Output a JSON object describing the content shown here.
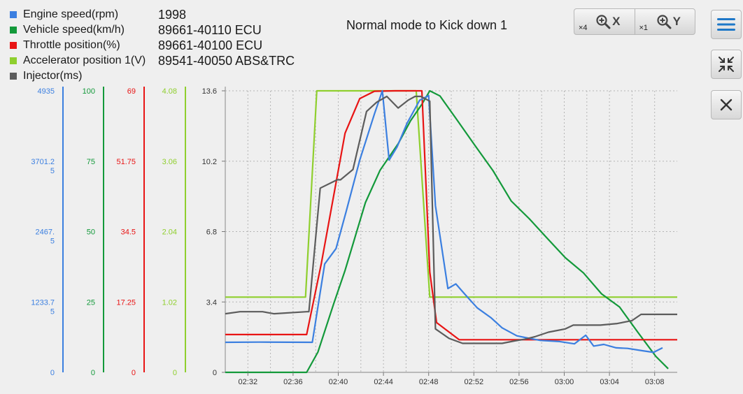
{
  "legend": [
    {
      "label": "Engine speed(rpm)",
      "color": "#3b7fe0"
    },
    {
      "label": "Vehicle speed(km/h)",
      "color": "#13993a"
    },
    {
      "label": "Throttle position(%)",
      "color": "#e81414"
    },
    {
      "label": "Accelerator position 1(V)",
      "color": "#8fcf2e"
    },
    {
      "label": "Injector(ms)",
      "color": "#5c5c5c"
    }
  ],
  "info": [
    "1998",
    "89661-40110 ECU",
    "89661-40100 ECU",
    "89541-40050 ABS&TRC"
  ],
  "toolbar": {
    "zoom_x_multiplier": "×4",
    "zoom_x_label": "X",
    "zoom_y_multiplier": "×1",
    "zoom_y_label": "Y",
    "menu_icon": "hamburger-menu-icon",
    "collapse_icon": "collapse-arrows-icon",
    "close_icon": "close-x-icon"
  },
  "chart_data": {
    "type": "line",
    "title": "Normal mode to Kick down 1",
    "grid": true,
    "x_ticks": [
      "02:32",
      "02:36",
      "02:40",
      "02:44",
      "02:48",
      "02:52",
      "02:56",
      "03:00",
      "03:04",
      "03:08"
    ],
    "x_tick_seconds": [
      152,
      156,
      160,
      164,
      168,
      172,
      176,
      180,
      184,
      188
    ],
    "xlim_seconds": [
      150,
      190
    ],
    "axes": [
      {
        "series": "Engine speed(rpm)",
        "color": "#3b7fe0",
        "ylim": [
          0,
          4935
        ],
        "ticks": [
          "0",
          "1233.75",
          "2467.5",
          "3701.25",
          "4935"
        ]
      },
      {
        "series": "Vehicle speed(km/h)",
        "color": "#13993a",
        "ylim": [
          0,
          100
        ],
        "ticks": [
          "0",
          "25",
          "50",
          "75",
          "100"
        ]
      },
      {
        "series": "Throttle position(%)",
        "color": "#e81414",
        "ylim": [
          0,
          69
        ],
        "ticks": [
          "0",
          "17.25",
          "34.5",
          "51.75",
          "69"
        ]
      },
      {
        "series": "Accelerator position 1(V)",
        "color": "#8fcf2e",
        "ylim": [
          0,
          4.08
        ],
        "ticks": [
          "0",
          "1.02",
          "2.04",
          "3.06",
          "4.08"
        ]
      },
      {
        "series": "Injector(ms)",
        "color": "#5c5c5c",
        "ylim": [
          0,
          13.6
        ],
        "ticks": [
          "0",
          "3.4",
          "6.8",
          "10.2",
          "13.6"
        ]
      }
    ],
    "series": [
      {
        "name": "Accelerator position 1(V)",
        "color": "#8fcf2e",
        "x": [
          150,
          157.1,
          158.1,
          166.9,
          168.1,
          190
        ],
        "y": [
          1.09,
          1.09,
          4.08,
          4.08,
          1.09,
          1.09
        ]
      },
      {
        "name": "Vehicle speed(km/h)",
        "color": "#13993a",
        "x": [
          150,
          157.2,
          158.2,
          159.6,
          160.6,
          162.4,
          163.7,
          165.3,
          166.4,
          167.4,
          168.1,
          169.0,
          170.5,
          172.1,
          173.7,
          175.3,
          176.9,
          178.5,
          180.1,
          181.7,
          183.3,
          184.9,
          186.5,
          188.1,
          189.2
        ],
        "y": [
          0,
          0,
          7.2,
          24.4,
          36.2,
          60.3,
          71.8,
          81.2,
          89.4,
          95.2,
          100,
          98.2,
          89.7,
          80.6,
          71.6,
          60.9,
          54.6,
          47.6,
          40.7,
          35.3,
          27.9,
          23.2,
          14.3,
          5.7,
          1.3
        ]
      },
      {
        "name": "Throttle position(%)",
        "color": "#e81414",
        "x": [
          150,
          157.2,
          158.5,
          160.6,
          161.9,
          163.2,
          165.0,
          167.4,
          168.1,
          168.7,
          170.7,
          182.2,
          190
        ],
        "y": [
          9.26,
          9.26,
          26.7,
          58.6,
          67.1,
          68.9,
          69.0,
          69.0,
          24.6,
          12.2,
          8.0,
          8.0,
          8.0
        ]
      },
      {
        "name": "Engine speed(rpm)",
        "color": "#3b7fe0",
        "x": [
          150,
          153,
          157.7,
          158.8,
          159.8,
          160.7,
          161.9,
          163.2,
          163.9,
          164.5,
          165.2,
          166.1,
          167.2,
          168.0,
          168.6,
          169.7,
          170.4,
          171.2,
          172.3,
          173.5,
          174.5,
          175.8,
          176.8,
          177.9,
          179.6,
          180.9,
          181.9,
          182.6,
          183.5,
          184.6,
          185.6,
          186.9,
          187.9,
          188.7
        ],
        "y": [
          527,
          530,
          527,
          1900,
          2170,
          2820,
          3720,
          4530,
          4935,
          3720,
          3950,
          4370,
          4770,
          4850,
          2920,
          1470,
          1550,
          1370,
          1130,
          960,
          780,
          640,
          600,
          560,
          540,
          500,
          650,
          460,
          490,
          430,
          420,
          380,
          350,
          430
        ]
      },
      {
        "name": "Injector(ms)",
        "color": "#5c5c5c",
        "x": [
          150,
          151.3,
          153.3,
          154.3,
          157.2,
          157.4,
          158.4,
          159.9,
          160.2,
          161.3,
          162.5,
          163.4,
          164.3,
          165.3,
          166.2,
          166.8,
          167.3,
          168.1,
          168.6,
          169.8,
          171.0,
          173.5,
          174.5,
          175.6,
          176.5,
          177.4,
          178.6,
          180.1,
          180.8,
          183.2,
          184.7,
          186.0,
          186.8,
          190
        ],
        "y": [
          2.83,
          2.93,
          2.93,
          2.83,
          2.93,
          2.93,
          8.9,
          9.3,
          9.3,
          9.8,
          12.6,
          13.05,
          13.33,
          12.77,
          13.15,
          13.33,
          13.33,
          13.1,
          2.1,
          1.64,
          1.4,
          1.4,
          1.4,
          1.52,
          1.6,
          1.72,
          1.94,
          2.1,
          2.28,
          2.28,
          2.36,
          2.5,
          2.8,
          2.8
        ]
      }
    ]
  }
}
